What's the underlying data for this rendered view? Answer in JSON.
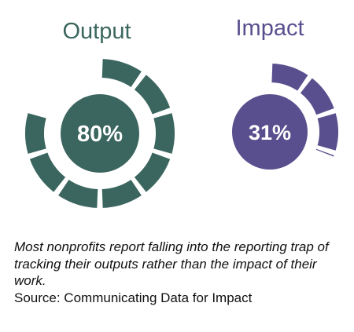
{
  "chart_data": [
    {
      "type": "pie",
      "title": "Output",
      "value_label": "80%",
      "value": 80,
      "segments_total": 10,
      "color": "#3b665f"
    },
    {
      "type": "pie",
      "title": "Impact",
      "value_label": "31%",
      "value": 31,
      "segments_total": 10,
      "color": "#5a4f8e"
    }
  ],
  "caption": {
    "text": "Most nonprofits report falling into the reporting trap of tracking their outputs rather than the impact of their work.",
    "source": "Source: Communicating Data for Impact"
  }
}
